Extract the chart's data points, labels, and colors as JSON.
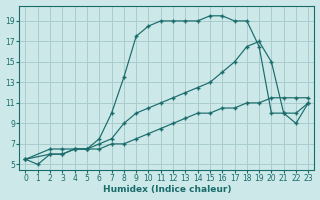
{
  "xlabel": "Humidex (Indice chaleur)",
  "ylabel": "",
  "bg_color": "#cce8e8",
  "grid_color": "#aacccc",
  "line_color": "#1a6b6b",
  "xlim": [
    -0.5,
    23.5
  ],
  "ylim": [
    4.5,
    20.5
  ],
  "xticks": [
    0,
    1,
    2,
    3,
    4,
    5,
    6,
    7,
    8,
    9,
    10,
    11,
    12,
    13,
    14,
    15,
    16,
    17,
    18,
    19,
    20,
    21,
    22,
    23
  ],
  "yticks": [
    5,
    7,
    9,
    11,
    13,
    15,
    17,
    19
  ],
  "series": [
    {
      "x": [
        0,
        2,
        3,
        4,
        5,
        6,
        7,
        8,
        9,
        10,
        11,
        12,
        13,
        14,
        15,
        16,
        17,
        18,
        19,
        20,
        21,
        22,
        23
      ],
      "y": [
        5.5,
        6.5,
        6.5,
        6.5,
        6.5,
        7.5,
        10,
        13.5,
        17.5,
        18.5,
        19,
        19,
        19,
        19,
        19.5,
        19.5,
        19,
        19,
        16.5,
        10,
        10,
        10,
        11
      ]
    },
    {
      "x": [
        0,
        2,
        3,
        4,
        5,
        6,
        7,
        8,
        9,
        10,
        11,
        12,
        13,
        14,
        15,
        16,
        17,
        18,
        19,
        20,
        21,
        22,
        23
      ],
      "y": [
        5.5,
        6,
        6,
        6.5,
        6.5,
        7,
        7.5,
        9,
        10,
        10.5,
        11,
        11.5,
        12,
        12.5,
        13,
        14,
        15,
        16.5,
        17,
        15,
        10,
        9,
        11
      ]
    },
    {
      "x": [
        0,
        1,
        2,
        3,
        4,
        5,
        6,
        7,
        8,
        9,
        10,
        11,
        12,
        13,
        14,
        15,
        16,
        17,
        18,
        19,
        20,
        21,
        22,
        23
      ],
      "y": [
        5.5,
        5,
        6,
        6,
        6.5,
        6.5,
        6.5,
        7,
        7,
        7.5,
        8,
        8.5,
        9,
        9.5,
        10,
        10,
        10.5,
        10.5,
        11,
        11,
        11.5,
        11.5,
        11.5,
        11.5
      ]
    }
  ]
}
